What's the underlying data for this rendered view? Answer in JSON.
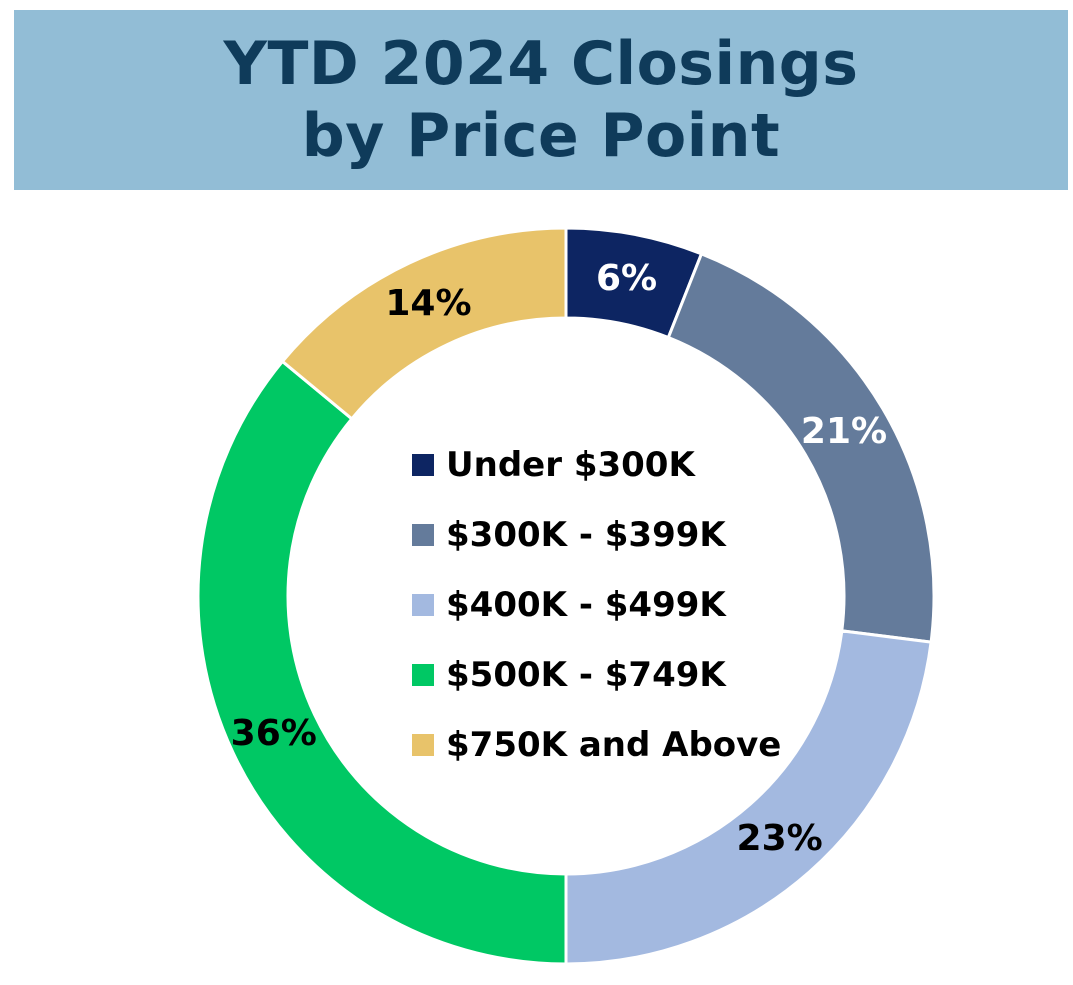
{
  "title": {
    "line1": "YTD 2024 Closings",
    "line2": "by Price Point"
  },
  "colors": {
    "banner": "#92bdd6",
    "title_text": "#0f3b5a",
    "slice_border": "#ffffff"
  },
  "chart_data": {
    "type": "pie",
    "subtype": "donut",
    "title": "YTD 2024 Closings by Price Point",
    "legend_position": "center",
    "categories": [
      "Under $300K",
      "$300K - $399K",
      "$400K - $499K",
      "$500K - $749K",
      "$750K and Above"
    ],
    "values": [
      6,
      21,
      23,
      36,
      14
    ],
    "labels": [
      "6%",
      "21%",
      "23%",
      "36%",
      "14%"
    ],
    "colors": [
      "#0d2562",
      "#647b9b",
      "#a3b9e0",
      "#00c864",
      "#e8c36a"
    ],
    "label_colors": [
      "#ffffff",
      "#ffffff",
      "#000000",
      "#000000",
      "#000000"
    ]
  }
}
